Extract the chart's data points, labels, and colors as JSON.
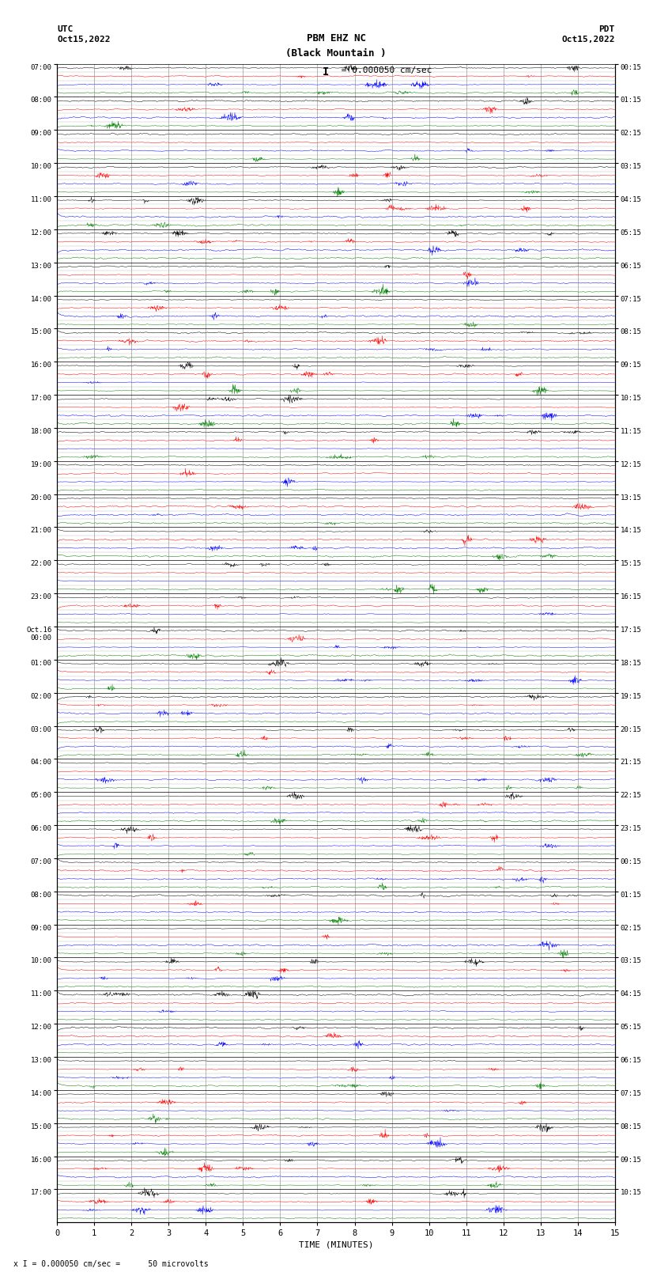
{
  "title_line1": "PBM EHZ NC",
  "title_line2": "(Black Mountain )",
  "scale_label": "I = 0.000050 cm/sec",
  "left_label": "UTC",
  "left_date": "Oct15,2022",
  "right_label": "PDT",
  "right_date": "Oct15,2022",
  "bottom_label": "TIME (MINUTES)",
  "bottom_note": "x I = 0.000050 cm/sec =      50 microvolts",
  "xlabel_ticks": [
    0,
    1,
    2,
    3,
    4,
    5,
    6,
    7,
    8,
    9,
    10,
    11,
    12,
    13,
    14,
    15
  ],
  "num_rows": 35,
  "minutes_per_row": 15,
  "row_labels_utc": [
    "07:00",
    "08:00",
    "09:00",
    "10:00",
    "11:00",
    "12:00",
    "13:00",
    "14:00",
    "15:00",
    "16:00",
    "17:00",
    "18:00",
    "19:00",
    "20:00",
    "21:00",
    "22:00",
    "23:00",
    "Oct.16\n00:00",
    "01:00",
    "02:00",
    "03:00",
    "04:00",
    "05:00",
    "06:00",
    "07:00",
    "08:00",
    "09:00",
    "10:00",
    "11:00",
    "12:00",
    "13:00",
    "14:00",
    "15:00",
    "16:00",
    "17:00"
  ],
  "row_labels_pdt": [
    "00:15",
    "01:15",
    "02:15",
    "03:15",
    "04:15",
    "05:15",
    "06:15",
    "07:15",
    "08:15",
    "09:15",
    "10:15",
    "11:15",
    "12:15",
    "13:15",
    "14:15",
    "15:15",
    "16:15",
    "17:15",
    "18:15",
    "19:15",
    "20:15",
    "21:15",
    "22:15",
    "23:15",
    "00:15",
    "01:15",
    "02:15",
    "03:15",
    "04:15",
    "05:15",
    "06:15",
    "07:15",
    "08:15",
    "09:15",
    "10:15"
  ],
  "bg_color": "#ffffff",
  "trace_colors": [
    "#000000",
    "#ff0000",
    "#0000ff",
    "#008000"
  ],
  "grid_color": "#000000",
  "sub_traces": 4
}
